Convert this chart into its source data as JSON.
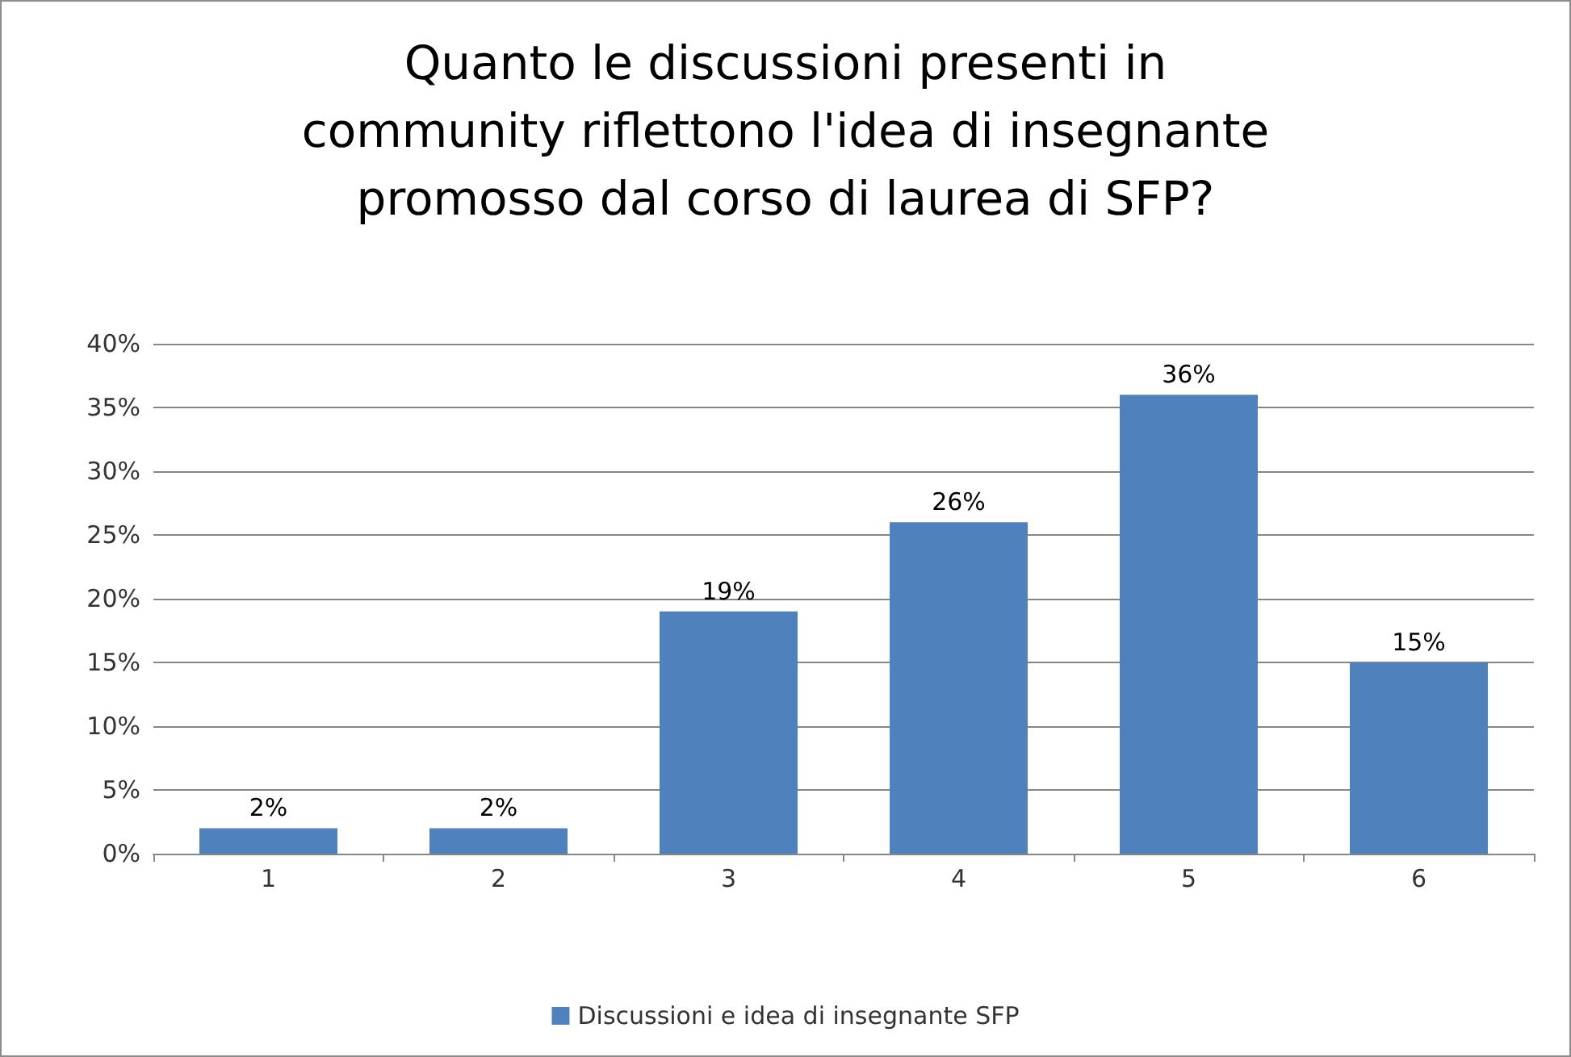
{
  "chart_data": {
    "type": "bar",
    "title": "Quanto le discussioni presenti in\ncommunity riflettono l'idea di insegnante\npromosso dal corso di laurea di SFP?",
    "categories": [
      "1",
      "2",
      "3",
      "4",
      "5",
      "6"
    ],
    "series": [
      {
        "name": "Discussioni e idea di insegnante SFP",
        "color": "#4f81bd",
        "values": [
          2,
          2,
          19,
          26,
          36,
          15
        ],
        "value_labels": [
          "2%",
          "2%",
          "19%",
          "26%",
          "36%",
          "15%"
        ]
      }
    ],
    "ylim": [
      0,
      40
    ],
    "yticks": [
      {
        "value": 0,
        "label": "0%"
      },
      {
        "value": 5,
        "label": "5%"
      },
      {
        "value": 10,
        "label": "10%"
      },
      {
        "value": 15,
        "label": "15%"
      },
      {
        "value": 20,
        "label": "20%"
      },
      {
        "value": 25,
        "label": "25%"
      },
      {
        "value": 30,
        "label": "30%"
      },
      {
        "value": 35,
        "label": "35%"
      },
      {
        "value": 40,
        "label": "40%"
      }
    ],
    "grid": "y",
    "legend": "bottom"
  }
}
